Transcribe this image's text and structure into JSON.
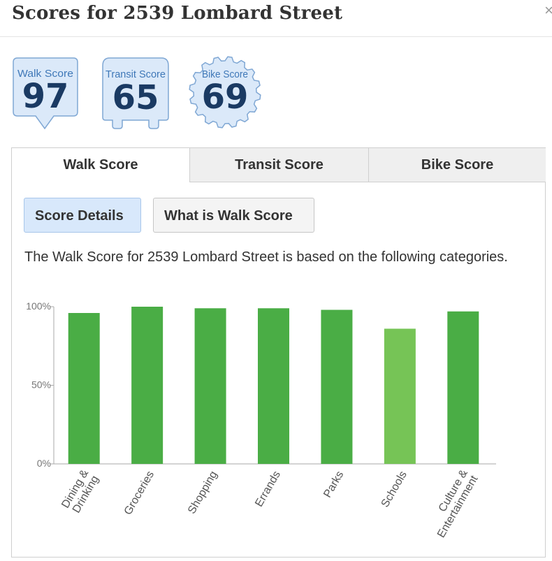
{
  "header": {
    "title": "Scores for 2539 Lombard Street",
    "close_glyph": "×"
  },
  "badges": [
    {
      "label": "Walk Score",
      "value": "97",
      "shape": "pin"
    },
    {
      "label": "Transit Score",
      "value": "65",
      "shape": "bus"
    },
    {
      "label": "Bike Score",
      "value": "69",
      "shape": "gear"
    }
  ],
  "colors": {
    "badge_fill": "#dbe9f9",
    "badge_stroke": "#7fa7d4",
    "badge_label": "#3f78b8",
    "badge_number": "#1a3a63",
    "bar": "#4aad45",
    "bar_light": "#76c456",
    "active_button": "#d8e8fb"
  },
  "tabs": [
    {
      "label": "Walk Score",
      "active": true
    },
    {
      "label": "Transit Score",
      "active": false
    },
    {
      "label": "Bike Score",
      "active": false
    }
  ],
  "buttons": {
    "details": "Score Details",
    "what_is": "What is Walk Score"
  },
  "description": "The Walk Score for 2539 Lombard Street is based on the following categories.",
  "chart_data": {
    "type": "bar",
    "categories": [
      "Dining & Drinking",
      "Groceries",
      "Shopping",
      "Errands",
      "Parks",
      "Schools",
      "Culture & Entertainment"
    ],
    "values": [
      96,
      100,
      99,
      99,
      98,
      86,
      97
    ],
    "highlight": [
      false,
      false,
      false,
      false,
      false,
      true,
      false
    ],
    "ylim": [
      0,
      100
    ],
    "yticks": [
      "0%",
      "50%",
      "100%"
    ]
  }
}
